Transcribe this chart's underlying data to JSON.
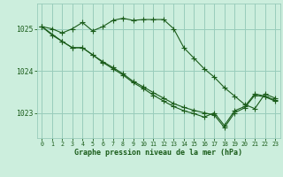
{
  "bg_color": "#cceedd",
  "grid_color": "#99ccbb",
  "line_color": "#1a5c1a",
  "xlabel": "Graphe pression niveau de la mer (hPa)",
  "xlim": [
    -0.5,
    23.5
  ],
  "ylim": [
    1022.4,
    1025.6
  ],
  "yticks": [
    1023,
    1024,
    1025
  ],
  "xticks": [
    0,
    1,
    2,
    3,
    4,
    5,
    6,
    7,
    8,
    9,
    10,
    11,
    12,
    13,
    14,
    15,
    16,
    17,
    18,
    19,
    20,
    21,
    22,
    23
  ],
  "series1_x": [
    0,
    1,
    2,
    3,
    4,
    5,
    6,
    7,
    8,
    9,
    10,
    11,
    12,
    13,
    14,
    15,
    16,
    17,
    18,
    19,
    20,
    21,
    22,
    23
  ],
  "series1_y": [
    1025.05,
    1025.0,
    1024.9,
    1025.0,
    1025.15,
    1024.95,
    1025.05,
    1025.2,
    1025.25,
    1025.2,
    1025.22,
    1025.22,
    1025.22,
    1025.0,
    1024.55,
    1024.3,
    1024.05,
    1023.85,
    1023.6,
    1023.4,
    1023.2,
    1023.1,
    1023.45,
    1023.35
  ],
  "series2_x": [
    0,
    1,
    2,
    3,
    4,
    5,
    6,
    7,
    8,
    9,
    10,
    11,
    12,
    13,
    14,
    15,
    16,
    17,
    18,
    19,
    20,
    21,
    22,
    23
  ],
  "series2_y": [
    1025.05,
    1024.85,
    1024.7,
    1024.55,
    1024.55,
    1024.38,
    1024.2,
    1024.05,
    1023.9,
    1023.72,
    1023.58,
    1023.42,
    1023.28,
    1023.15,
    1023.05,
    1022.98,
    1022.9,
    1023.0,
    1022.7,
    1023.05,
    1023.15,
    1023.45,
    1023.4,
    1023.3
  ],
  "series3_x": [
    0,
    2,
    3,
    4,
    5,
    6,
    7,
    8,
    9,
    10,
    11,
    12,
    13,
    14,
    15,
    16,
    17,
    18,
    19,
    20,
    21,
    22,
    23
  ],
  "series3_y": [
    1025.05,
    1024.7,
    1024.55,
    1024.55,
    1024.38,
    1024.22,
    1024.08,
    1023.93,
    1023.75,
    1023.62,
    1023.48,
    1023.35,
    1023.22,
    1023.13,
    1023.06,
    1023.0,
    1022.95,
    1022.65,
    1023.0,
    1023.12,
    1023.42,
    1023.38,
    1023.28
  ]
}
